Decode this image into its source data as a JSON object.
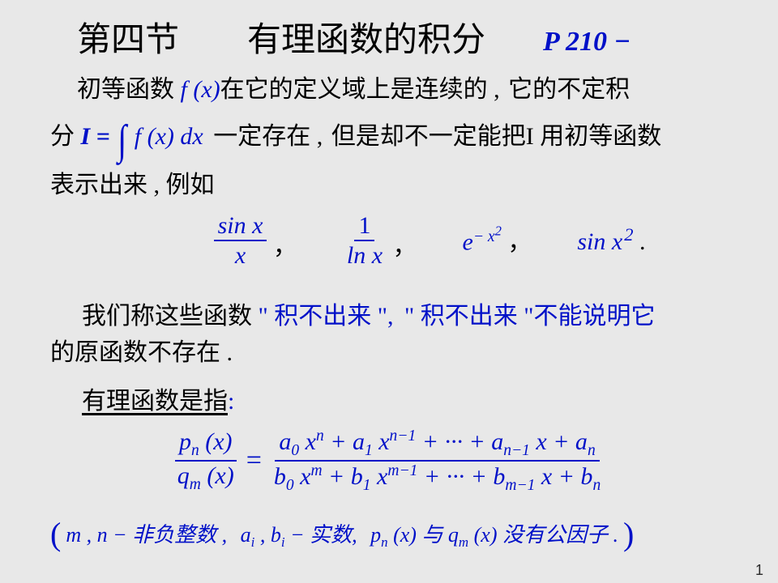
{
  "title_main": "第四节　　有理函数的积分",
  "title_ref": "P 210 −",
  "row1_a": "初等函数",
  "row1_b": "f (x)",
  "row1_c": "在它的定义域上是连续的 ,",
  "row1_d": "它的不定积",
  "row2_a": "分",
  "row2_eq_I": "I =",
  "row2_int": "∫",
  "row2_eq_fx": "f (x) dx",
  "row2_b": "一定存在 ,",
  "row2_c": "但是却不一定能把I 用初等函数",
  "row3": "表示出来 ,  例如",
  "ex1_num": "sin x",
  "ex1_den": "x",
  "ex2_num": "1",
  "ex2_den": "ln x",
  "ex3_base": "e",
  "ex3_sup": "− x",
  "ex3_sup2": "2",
  "ex4_a": "sin x",
  "ex4_sup": "2",
  "period": ".",
  "comma": "，",
  "row5_a": "我们称这些函数",
  "row5_b": "\"",
  "row5_c": "积不出来",
  "row5_d": "\",",
  "row5_e": "\" 积不出来 \"不能说明它",
  "row6": "的原函数不存在 .",
  "row7_a": "有理函数是指",
  "row7_b": ":",
  "frac_L_num_a": "p",
  "frac_L_num_sub": "n",
  "frac_L_num_b": " (x)",
  "frac_L_den_a": "q",
  "frac_L_den_sub": "m",
  "frac_L_den_b": " (x)",
  "eq": "=",
  "frac_R_num": "a<sub>0</sub> x<sup>n</sup> + a<sub>1</sub> x<sup>n−1</sup> + ··· + a<sub>n−1</sub> x + a<sub>n</sub>",
  "frac_R_den": "b<sub>0</sub> x<sup>m</sup> + b<sub>1</sub> x<sup>m−1</sup> + ··· + b<sub>m−1</sub> x + b<sub>n</sub>",
  "cond_a": "m , n − 非负整数 ,",
  "cond_b": "a<sub>i</sub> , b<sub>i</sub> − 实数,",
  "cond_c": "p<sub>n</sub> (x) 与 q<sub>m</sub> (x) 没有公因子 .",
  "page_num": "1"
}
